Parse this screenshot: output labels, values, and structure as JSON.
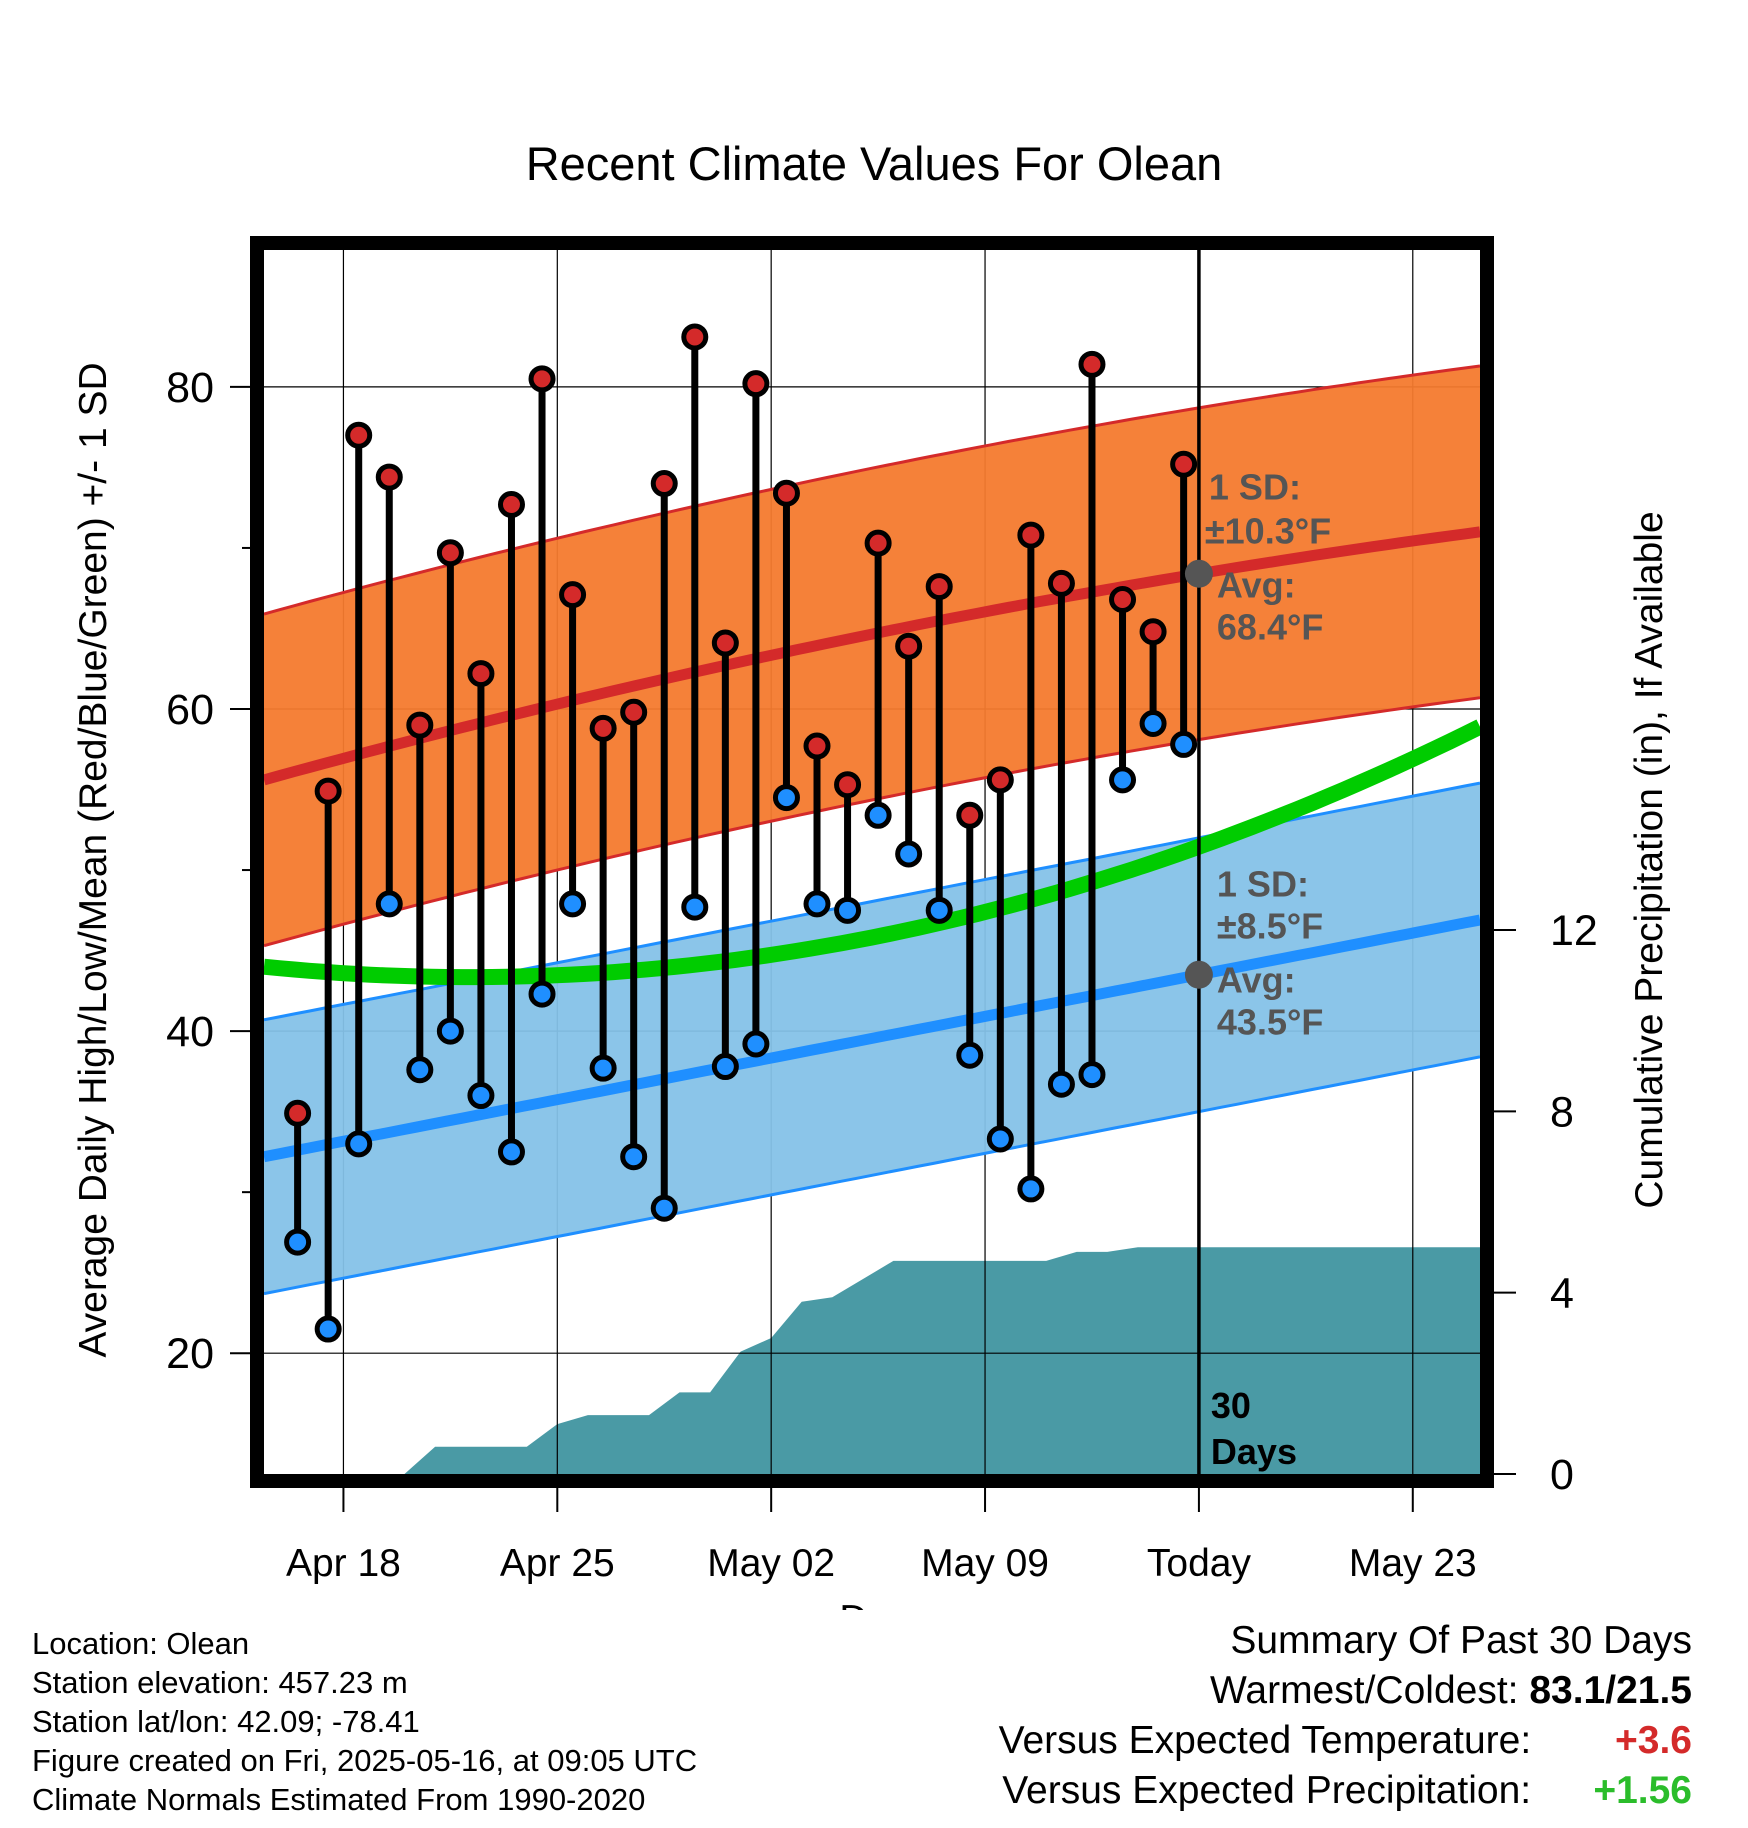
{
  "chart_data": {
    "type": "range-dot",
    "title": "Recent Climate Values For Olean",
    "xlabel": "Day",
    "ylabel": "Average Daily High/Low/Mean (Red/Blue/Green) +/- 1 SD",
    "y2label": "Cumulative Precipitation (in), If Available",
    "x_ticks": [
      "Apr 18",
      "Apr 25",
      "May 02",
      "May 09",
      "Today",
      "May 23"
    ],
    "x_tick_days": [
      2,
      9,
      16,
      23,
      30,
      37
    ],
    "xlim_days": [
      -0.6,
      39.2
    ],
    "ylim": [
      12.5,
      88.5
    ],
    "y_ticks": [
      20,
      40,
      60,
      80
    ],
    "y2lim": [
      0,
      27
    ],
    "y2_ticks": [
      0,
      4,
      8,
      12
    ],
    "today_day": 30,
    "today_label_1": "30",
    "today_label_2": "Days",
    "highs": [
      34.9,
      54.9,
      77.0,
      74.4,
      59.0,
      69.7,
      62.2,
      72.7,
      80.5,
      67.1,
      58.8,
      59.8,
      74.0,
      83.1,
      64.1,
      80.2,
      73.4,
      57.7,
      55.3,
      70.3,
      63.9,
      67.6,
      53.4,
      55.6,
      70.8,
      67.8,
      81.4,
      66.8,
      64.8,
      75.2
    ],
    "lows": [
      26.9,
      21.5,
      33.0,
      47.9,
      37.6,
      40.0,
      36.0,
      32.5,
      42.3,
      47.9,
      37.7,
      32.2,
      29.0,
      47.7,
      37.8,
      39.2,
      54.5,
      47.9,
      47.5,
      53.4,
      51.0,
      47.5,
      38.5,
      33.3,
      30.2,
      36.7,
      37.3,
      55.6,
      59.1,
      57.8
    ],
    "normal_high": {
      "start": 55.6,
      "today": 68.4,
      "end": 71.0
    },
    "normal_low": {
      "start": 32.2,
      "today": 43.5,
      "end": 46.9
    },
    "normal_mean": {
      "start": 44.0,
      "end": 58.9
    },
    "high_sd": 10.3,
    "low_sd": 8.5,
    "precip_days": [
      4,
      5,
      8,
      9,
      10,
      12,
      13,
      14,
      15,
      16,
      17,
      18,
      19,
      20,
      21,
      22,
      23,
      24,
      25,
      26,
      27,
      28,
      29,
      30,
      39.2
    ],
    "precip_values": [
      0.0,
      0.6,
      0.6,
      1.1,
      1.3,
      1.3,
      1.8,
      1.8,
      2.7,
      3.0,
      3.8,
      3.9,
      4.3,
      4.7,
      4.7,
      4.7,
      4.7,
      4.7,
      4.7,
      4.9,
      4.9,
      5.0,
      5.0,
      5.0,
      5.0
    ],
    "annotations": {
      "high_sd_1": "1 SD:",
      "high_sd_2": "±10.3°F",
      "high_avg_1": "Avg:",
      "high_avg_2": "68.4°F",
      "low_sd_1": "1 SD:",
      "low_sd_2": "±8.5°F",
      "low_avg_1": "Avg:",
      "low_avg_2": "43.5°F"
    },
    "colors": {
      "high_band": "#f47a2e",
      "high_line": "#d42a2a",
      "low_band": "#85c2e8",
      "low_line": "#1f8fff",
      "mean_line": "#00cc00",
      "precip": "#4a9aa5",
      "today_marker": "#555555"
    }
  },
  "meta": {
    "location": "Location: Olean",
    "elevation": "Station elevation: 457.23 m",
    "latlon": "Station lat/lon: 42.09; -78.41",
    "created": "Figure created on Fri, 2025-05-16, at 09:05 UTC",
    "normals": "Climate Normals Estimated From 1990-2020"
  },
  "summary": {
    "title": "Summary Of Past 30 Days",
    "warm_cold_label": "Warmest/Coldest:",
    "warm_cold_value": "83.1/21.5",
    "temp_label": "Versus Expected Temperature:",
    "temp_value": "+3.6",
    "precip_label": "Versus Expected Precipitation:",
    "precip_value": "+1.56"
  }
}
